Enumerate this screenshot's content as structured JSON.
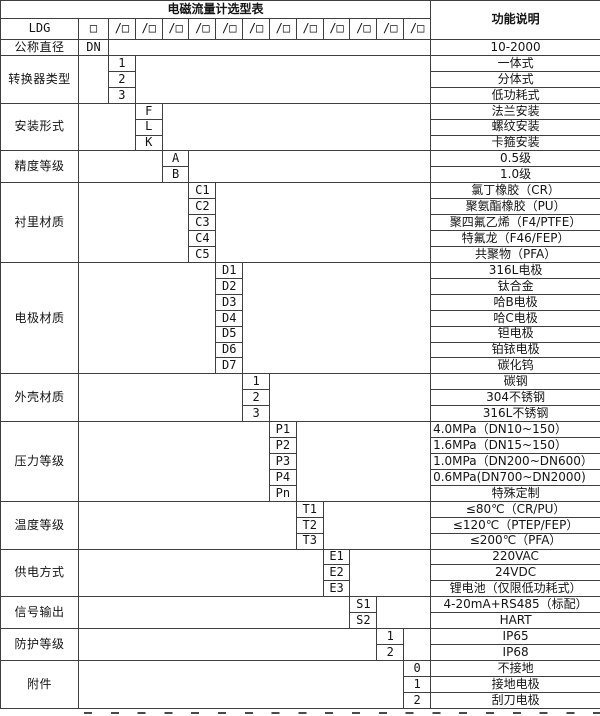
{
  "title": "电磁流量计选型表",
  "function_header": "功能说明",
  "model_row": {
    "prefix": "LDG",
    "base_box": "□",
    "slot_box": "/□",
    "slot_count": 12
  },
  "diameter_row": {
    "label": "公称直径",
    "code": "DN",
    "desc": "10-2000"
  },
  "groups": [
    {
      "name": "converter-type",
      "label": "转换器类型",
      "col": 1,
      "options": [
        {
          "code": "1",
          "desc": "一体式"
        },
        {
          "code": "2",
          "desc": "分体式"
        },
        {
          "code": "3",
          "desc": "低功耗式"
        }
      ]
    },
    {
      "name": "installation-form",
      "label": "安装形式",
      "col": 2,
      "options": [
        {
          "code": "F",
          "desc": "法兰安装"
        },
        {
          "code": "L",
          "desc": "螺纹安装"
        },
        {
          "code": "K",
          "desc": "卡箍安装"
        }
      ]
    },
    {
      "name": "accuracy-class",
      "label": "精度等级",
      "col": 3,
      "options": [
        {
          "code": "A",
          "desc": "0.5级"
        },
        {
          "code": "B",
          "desc": "1.0级"
        }
      ]
    },
    {
      "name": "lining-material",
      "label": "衬里材质",
      "col": 4,
      "options": [
        {
          "code": "C1",
          "desc": "氯丁橡胶（CR）"
        },
        {
          "code": "C2",
          "desc": "聚氨酯橡胶（PU）"
        },
        {
          "code": "C3",
          "desc": "聚四氟乙烯（F4/PTFE）"
        },
        {
          "code": "C4",
          "desc": "特氟龙（F46/FEP）"
        },
        {
          "code": "C5",
          "desc": "共聚物（PFA）"
        }
      ]
    },
    {
      "name": "electrode-material",
      "label": "电极材质",
      "col": 5,
      "options": [
        {
          "code": "D1",
          "desc": "316L电极"
        },
        {
          "code": "D2",
          "desc": "钛合金"
        },
        {
          "code": "D3",
          "desc": "哈B电极"
        },
        {
          "code": "D4",
          "desc": "哈C电极"
        },
        {
          "code": "D5",
          "desc": "钽电极"
        },
        {
          "code": "D6",
          "desc": "铂铱电极"
        },
        {
          "code": "D7",
          "desc": "碳化钨"
        }
      ]
    },
    {
      "name": "housing-material",
      "label": "外壳材质",
      "col": 6,
      "options": [
        {
          "code": "1",
          "desc": "碳钢"
        },
        {
          "code": "2",
          "desc": "304不锈钢"
        },
        {
          "code": "3",
          "desc": "316L不锈钢"
        }
      ]
    },
    {
      "name": "pressure-rating",
      "label": "压力等级",
      "col": 7,
      "options": [
        {
          "code": "P1",
          "desc": "4.0MPa（DN10~150）",
          "align": "left"
        },
        {
          "code": "P2",
          "desc": "1.6MPa（DN15~150）",
          "align": "left"
        },
        {
          "code": "P3",
          "desc": "1.0MPa（DN200~DN600）",
          "align": "left"
        },
        {
          "code": "P4",
          "desc": "0.6MPa(DN700~DN2000)",
          "align": "left"
        },
        {
          "code": "Pn",
          "desc": "特殊定制"
        }
      ]
    },
    {
      "name": "temperature-rating",
      "label": "温度等级",
      "col": 8,
      "options": [
        {
          "code": "T1",
          "desc": "≤80℃（CR/PU）"
        },
        {
          "code": "T2",
          "desc": "≤120℃（PTEP/FEP）"
        },
        {
          "code": "T3",
          "desc": "≤200℃（PFA）"
        }
      ]
    },
    {
      "name": "power-supply",
      "label": "供电方式",
      "col": 9,
      "options": [
        {
          "code": "E1",
          "desc": "220VAC"
        },
        {
          "code": "E2",
          "desc": "24VDC"
        },
        {
          "code": "E3",
          "desc": "锂电池（仅限低功耗式）"
        }
      ]
    },
    {
      "name": "signal-output",
      "label": "信号输出",
      "col": 10,
      "options": [
        {
          "code": "S1",
          "desc": "4-20mA+RS485（标配）"
        },
        {
          "code": "S2",
          "desc": "HART"
        }
      ]
    },
    {
      "name": "protection-class",
      "label": "防护等级",
      "col": 11,
      "options": [
        {
          "code": "1",
          "desc": "IP65"
        },
        {
          "code": "2",
          "desc": "IP68"
        }
      ]
    },
    {
      "name": "accessories",
      "label": "附件",
      "col": 12,
      "options": [
        {
          "code": "0",
          "desc": "不接地"
        },
        {
          "code": "1",
          "desc": "接地电极"
        },
        {
          "code": "2",
          "desc": "刮刀电极"
        }
      ]
    }
  ]
}
